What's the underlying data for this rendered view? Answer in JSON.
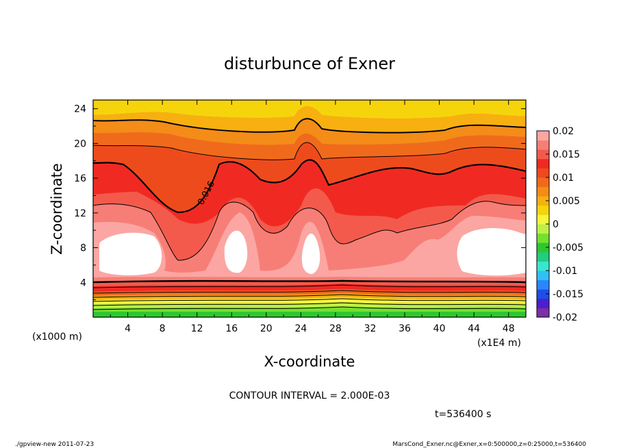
{
  "chart_data": {
    "type": "heatmap",
    "title": "disturbunce of Exner",
    "xlabel": "X-coordinate",
    "ylabel": "Z-coordinate",
    "x_unit_left": "(x1000 m)",
    "x_unit_right": "(x1E4 m)",
    "xlim": [
      0,
      50
    ],
    "ylim": [
      0,
      25
    ],
    "x_ticks": [
      "4",
      "8",
      "12",
      "16",
      "20",
      "24",
      "28",
      "32",
      "36",
      "40",
      "44",
      "48"
    ],
    "y_ticks": [
      "4",
      "8",
      "12",
      "16",
      "20",
      "24"
    ],
    "colorbar": {
      "range": [
        -0.02,
        0.02
      ],
      "tick_labels": [
        "0.02",
        "0.015",
        "0.01",
        "0.005",
        "0",
        "-0.005",
        "-0.01",
        "-0.015",
        "-0.02"
      ],
      "colors": [
        "#7b2fa8",
        "#4b1fd0",
        "#1d4fe6",
        "#2a86ff",
        "#2fc1f2",
        "#38e6d0",
        "#24cc80",
        "#2fc72f",
        "#74e030",
        "#bdf046",
        "#f5f53c",
        "#f6d40c",
        "#f7b010",
        "#f48c18",
        "#f06a1c",
        "#ee4b1d",
        "#f02a23",
        "#f35a4c",
        "#f77e76",
        "#fba6a2"
      ]
    },
    "contour_label": "0.016",
    "contour_interval": "CONTOUR INTERVAL = 2.000E-03",
    "time": "t=536400 s"
  },
  "footer": {
    "left": "./gpview-new  2011-07-23",
    "right": "MarsCond_Exner.nc@Exner,x=0:500000,z=0:25000,t=536400"
  }
}
